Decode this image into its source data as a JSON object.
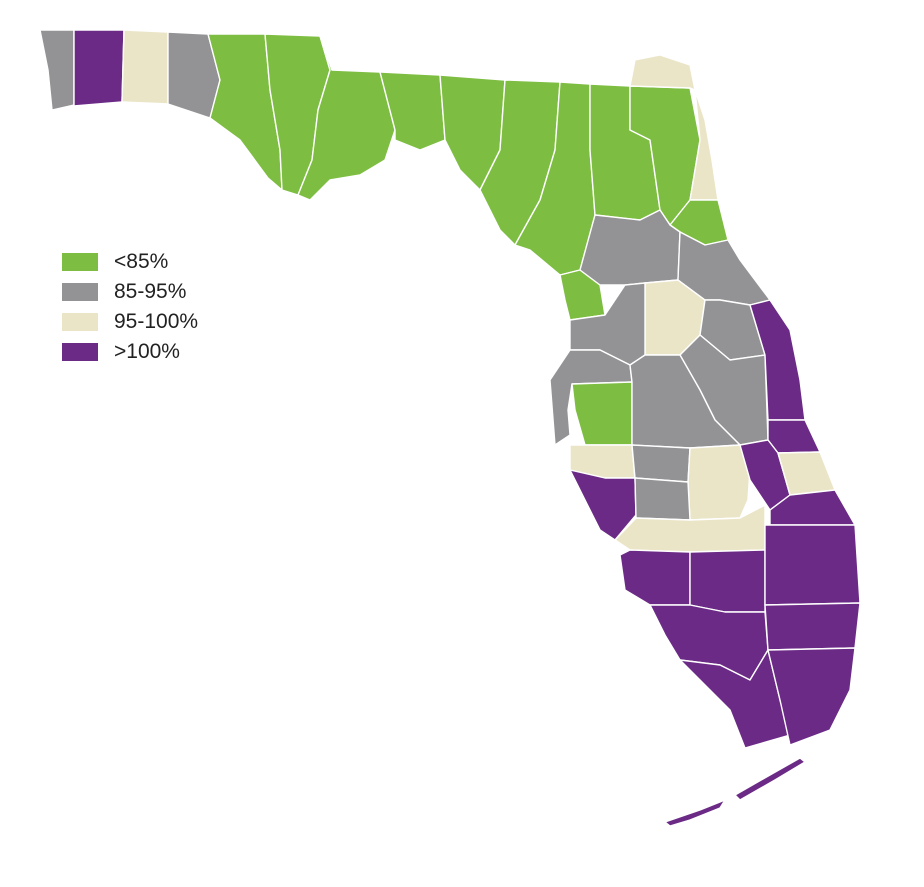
{
  "colors": {
    "lt85": "#7dbd41",
    "r85_95": "#939396",
    "r95_100": "#ebe5c8",
    "gt100": "#6b2a86",
    "border": "#ffffff"
  },
  "legend": {
    "items": [
      {
        "key": "lt85",
        "label": "<85%",
        "color": "#7dbd41"
      },
      {
        "key": "r85_95",
        "label": "85-95%",
        "color": "#939396"
      },
      {
        "key": "r95_100",
        "label": "95-100%",
        "color": "#ebe5c8"
      },
      {
        "key": "gt100",
        "label": ">100%",
        "color": "#6b2a86"
      }
    ]
  }
}
